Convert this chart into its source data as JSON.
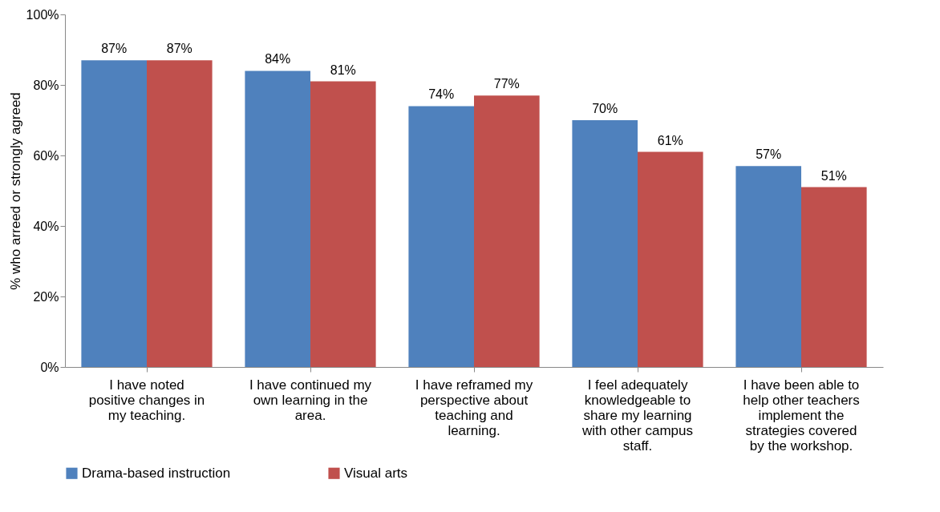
{
  "chart_data": {
    "type": "bar",
    "ylabel": "% who arreed or strongly agreed",
    "categories": [
      "I have noted positive changes in my teaching.",
      "I have continued my own learning in the area.",
      "I have reframed my perspective about teaching and learning.",
      "I feel adequately knowledgeable to share my learning with other campus staff.",
      "I have been able to help other teachers implement the strategies covered by the workshop."
    ],
    "series": [
      {
        "name": "Drama-based instruction",
        "color": "#4f81bd",
        "values": [
          87,
          84,
          74,
          70,
          57
        ],
        "value_labels": [
          "87%",
          "84%",
          "74%",
          "70%",
          "57%"
        ]
      },
      {
        "name": "Visual arts",
        "color": "#c0504d",
        "values": [
          87,
          81,
          77,
          61,
          51
        ],
        "value_labels": [
          "87%",
          "81%",
          "77%",
          "61%",
          "51%"
        ]
      }
    ],
    "ylim": [
      0,
      100
    ],
    "yticks": [
      {
        "value": 0,
        "label": "0%"
      },
      {
        "value": 20,
        "label": "20%"
      },
      {
        "value": 40,
        "label": "40%"
      },
      {
        "value": 60,
        "label": "60%"
      },
      {
        "value": 80,
        "label": "80%"
      },
      {
        "value": 100,
        "label": "100%"
      }
    ],
    "legend": "bottom"
  }
}
